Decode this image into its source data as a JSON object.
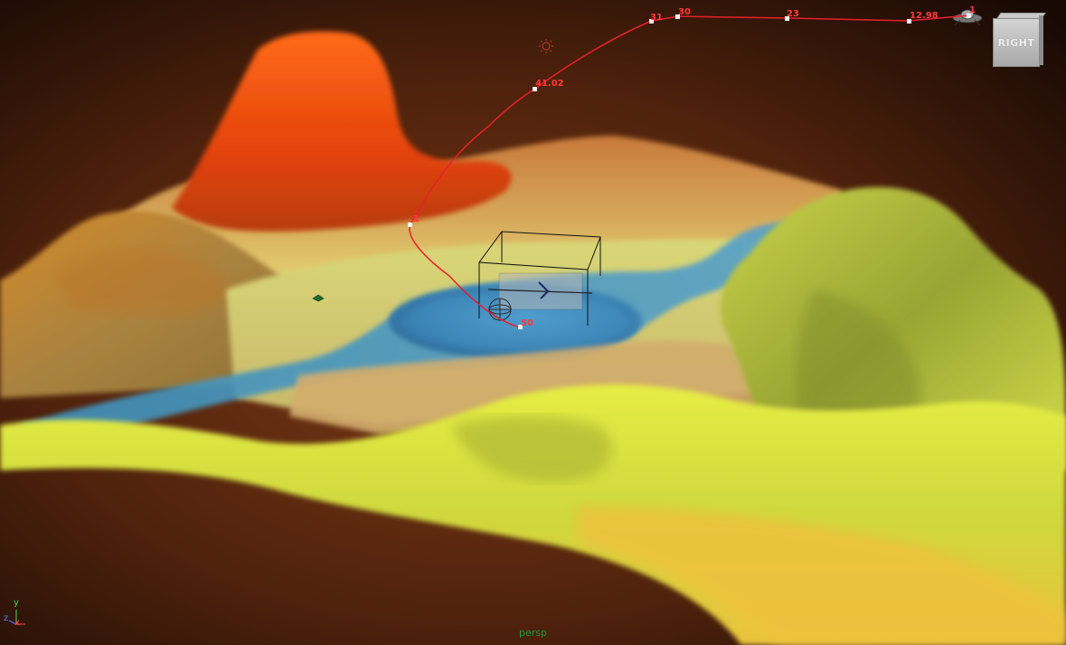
{
  "viewport": {
    "camera_name": "persp",
    "view_cube_label": "RIGHT",
    "axis": {
      "x": "x",
      "y": "y",
      "z": "z"
    }
  },
  "motion_path": {
    "key_labels": [
      "50",
      "1",
      "41.02",
      "31",
      "30",
      "23",
      "12.98",
      "1"
    ]
  },
  "colors": {
    "background_center": "#7a3816",
    "background_edge": "#180904",
    "motion_path": "#e8202a",
    "water": "#3f8fc0",
    "peak": "#ff4d0d",
    "grass": "#e2ea45",
    "sand": "#d6b26c"
  },
  "icons": [
    "light-icon",
    "camera-icon",
    "locator-icon",
    "helicopter-icon",
    "ufo-icon",
    "axis-gizmo-icon"
  ]
}
